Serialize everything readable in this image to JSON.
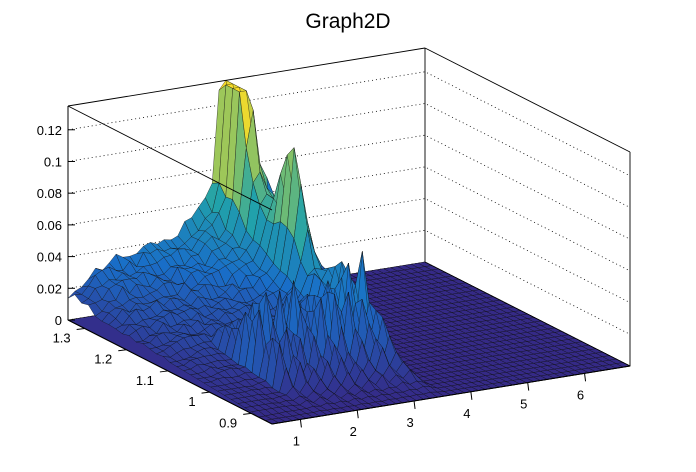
{
  "chart_data": {
    "type": "surface",
    "title": "Graph2D",
    "xlabel": "",
    "ylabel": "",
    "zlabel": "",
    "x_ticks": [
      "1",
      "2",
      "3",
      "4",
      "5",
      "6"
    ],
    "y_ticks": [
      "0.9",
      "1",
      "1.1",
      "1.2",
      "1.3"
    ],
    "z_ticks": [
      "0",
      "0.02",
      "0.04",
      "0.06",
      "0.08",
      "0.1",
      "0.12"
    ],
    "xlim": [
      0.5,
      6.8
    ],
    "ylim": [
      0.85,
      1.34
    ],
    "zlim": [
      0,
      0.135
    ],
    "grid": true,
    "palette": "kBird (blue-to-yellow)",
    "notes_visible": "surface rises along back (high-y) edge, peaks near x≈3.3, drops to 0 for x>3.6",
    "peaks": [
      {
        "x": 3.25,
        "y": 1.31,
        "z": 0.128
      },
      {
        "x": 3.3,
        "y": 1.18,
        "z": 0.061
      }
    ],
    "back_ridge": {
      "x": [
        0.5,
        1.0,
        1.5,
        2.0,
        2.5,
        3.0,
        3.25,
        3.5
      ],
      "z": [
        0.018,
        0.036,
        0.04,
        0.045,
        0.052,
        0.075,
        0.128,
        0.0
      ]
    },
    "colors": {
      "low": "#35409a",
      "mid": "#21a2a9",
      "high": "#f5d533",
      "frame": "#000000",
      "grid": "#000000"
    }
  }
}
